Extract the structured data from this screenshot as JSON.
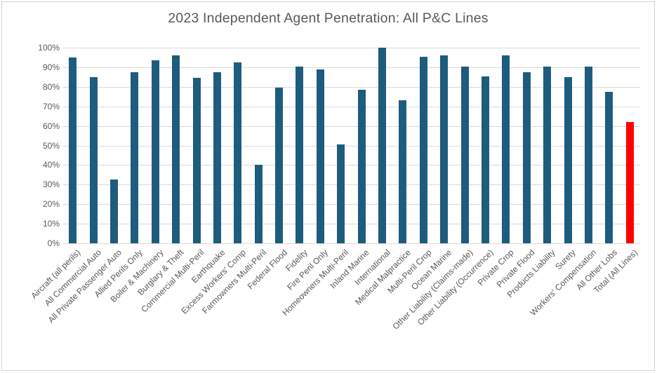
{
  "chart_data": {
    "type": "bar",
    "title": "2023 Independent Agent Penetration: All P&C Lines",
    "categories": [
      "Aircraft (all perils)",
      "All Commercial Auto",
      "All Private Passenger Auto",
      "Allied Perils Only",
      "Boiler & Machinery",
      "Burglary & Theft",
      "Commercial Multi-Peril",
      "Earthquake",
      "Excess Workers' Comp",
      "Farmowners Multi-Peril",
      "Federal Flood",
      "Fidelity",
      "Fire Peril Only",
      "Homeowners Multi-Peril",
      "Inland Marine",
      "International",
      "Medical Malpractice",
      "Multi-Peril Crop",
      "Ocean Marine",
      "Other Liability (Claims-made)",
      "Other Liability (Occurrence)",
      "Private Crop",
      "Private Flood",
      "Products Liability",
      "Surety",
      "Workers' Compensation",
      "All Other Lobs",
      "Total (All Lines)"
    ],
    "values": [
      95,
      85,
      32.5,
      87.5,
      93.5,
      96,
      84.5,
      87.5,
      92.5,
      40,
      79.5,
      90.5,
      89,
      50.5,
      78.5,
      100,
      73,
      95.5,
      96,
      90.5,
      85.5,
      96,
      87.5,
      90.5,
      85,
      90.5,
      77.5,
      62
    ],
    "y_ticks": [
      "100%",
      "90%",
      "80%",
      "70%",
      "60%",
      "50%",
      "40%",
      "30%",
      "20%",
      "10%",
      "0%"
    ],
    "ylim": [
      0,
      100
    ],
    "grid": "horizontal-only",
    "legend": "none",
    "xlabel": "",
    "ylabel": "",
    "x_label_rotation_deg": 45,
    "bar_color": "#1e5c7e",
    "highlight_color": "#ff0000",
    "highlight_category": "Total (All Lines)",
    "axis_text_color": "#595959",
    "title_color": "#595959",
    "gridline_color": "#dadada",
    "frame_border_color": "#d2d2d2"
  }
}
